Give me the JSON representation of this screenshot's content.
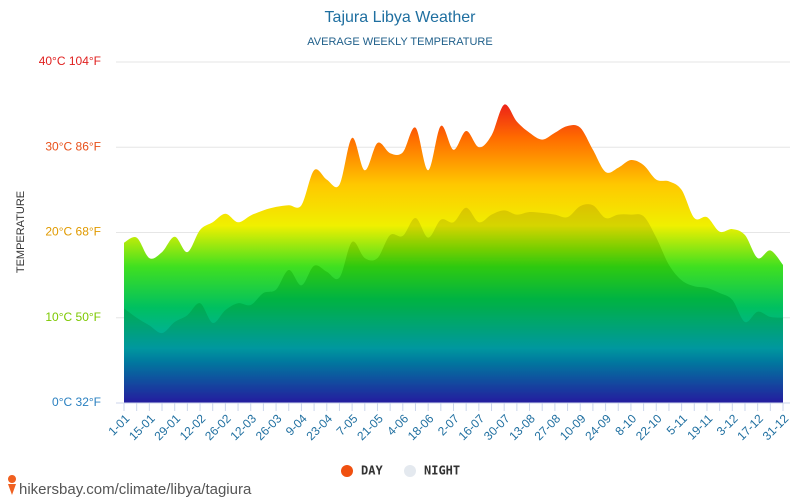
{
  "chart_data": {
    "type": "area",
    "title": "Tajura Libya Weather",
    "subtitle": "AVERAGE WEEKLY TEMPERATURE",
    "y_label": "TEMPERATURE",
    "source": "hikersbay.com/climate/libya/tagiura",
    "categories": [
      "1-01",
      null,
      "15-01",
      null,
      "29-01",
      null,
      "12-02",
      null,
      "26-02",
      null,
      "12-03",
      null,
      "26-03",
      null,
      "9-04",
      null,
      "23-04",
      null,
      "7-05",
      null,
      "21-05",
      null,
      "4-06",
      null,
      "18-06",
      null,
      "2-07",
      null,
      "16-07",
      null,
      "30-07",
      null,
      "13-08",
      null,
      "27-08",
      null,
      "10-09",
      null,
      "24-09",
      null,
      "8-10",
      null,
      "22-10",
      null,
      "5-11",
      null,
      "19-11",
      null,
      "3-12",
      null,
      "17-12",
      null,
      "31-12"
    ],
    "series": [
      {
        "name": "DAY",
        "color": "#f05010",
        "values": [
          18.8,
          19.4,
          17.0,
          17.7,
          19.5,
          17.7,
          20.3,
          21.2,
          22.2,
          21.2,
          22.0,
          22.6,
          23.0,
          23.2,
          23.2,
          27.3,
          26.2,
          25.6,
          31.1,
          27.3,
          30.5,
          29.3,
          29.4,
          32.3,
          27.3,
          32.5,
          29.7,
          31.9,
          30.0,
          31.4,
          35.0,
          33.0,
          31.7,
          30.9,
          31.7,
          32.5,
          32.3,
          29.7,
          27.1,
          27.6,
          28.5,
          27.9,
          26.2,
          26.0,
          25.0,
          21.7,
          21.8,
          20.1,
          20.4,
          19.7,
          17.0,
          17.9,
          16.2
        ]
      },
      {
        "name": "NIGHT",
        "color": "#e4e9ef",
        "values": [
          11.1,
          10.0,
          9.1,
          8.2,
          9.5,
          10.3,
          11.7,
          9.4,
          10.9,
          11.7,
          11.5,
          12.9,
          13.3,
          15.6,
          13.8,
          16.1,
          15.4,
          14.7,
          18.9,
          17.0,
          17.0,
          19.7,
          19.6,
          21.7,
          19.4,
          21.5,
          21.2,
          22.9,
          21.2,
          22.1,
          22.6,
          22.1,
          22.4,
          22.3,
          22.1,
          21.8,
          23.1,
          23.2,
          21.7,
          22.1,
          22.1,
          21.9,
          19.4,
          16.2,
          14.4,
          13.7,
          13.5,
          12.9,
          12.1,
          9.5,
          10.7,
          10.1,
          10.0
        ]
      }
    ],
    "ylim": [
      0,
      40
    ],
    "yticks": [
      {
        "value": 0,
        "label": "0°C 32°F"
      },
      {
        "value": 10,
        "label": "10°C 50°F"
      },
      {
        "value": 20,
        "label": "20°C 68°F"
      },
      {
        "value": 30,
        "label": "30°C 86°F"
      },
      {
        "value": 40,
        "label": "40°C 104°F"
      }
    ],
    "grid": true,
    "legend": "bottom"
  }
}
